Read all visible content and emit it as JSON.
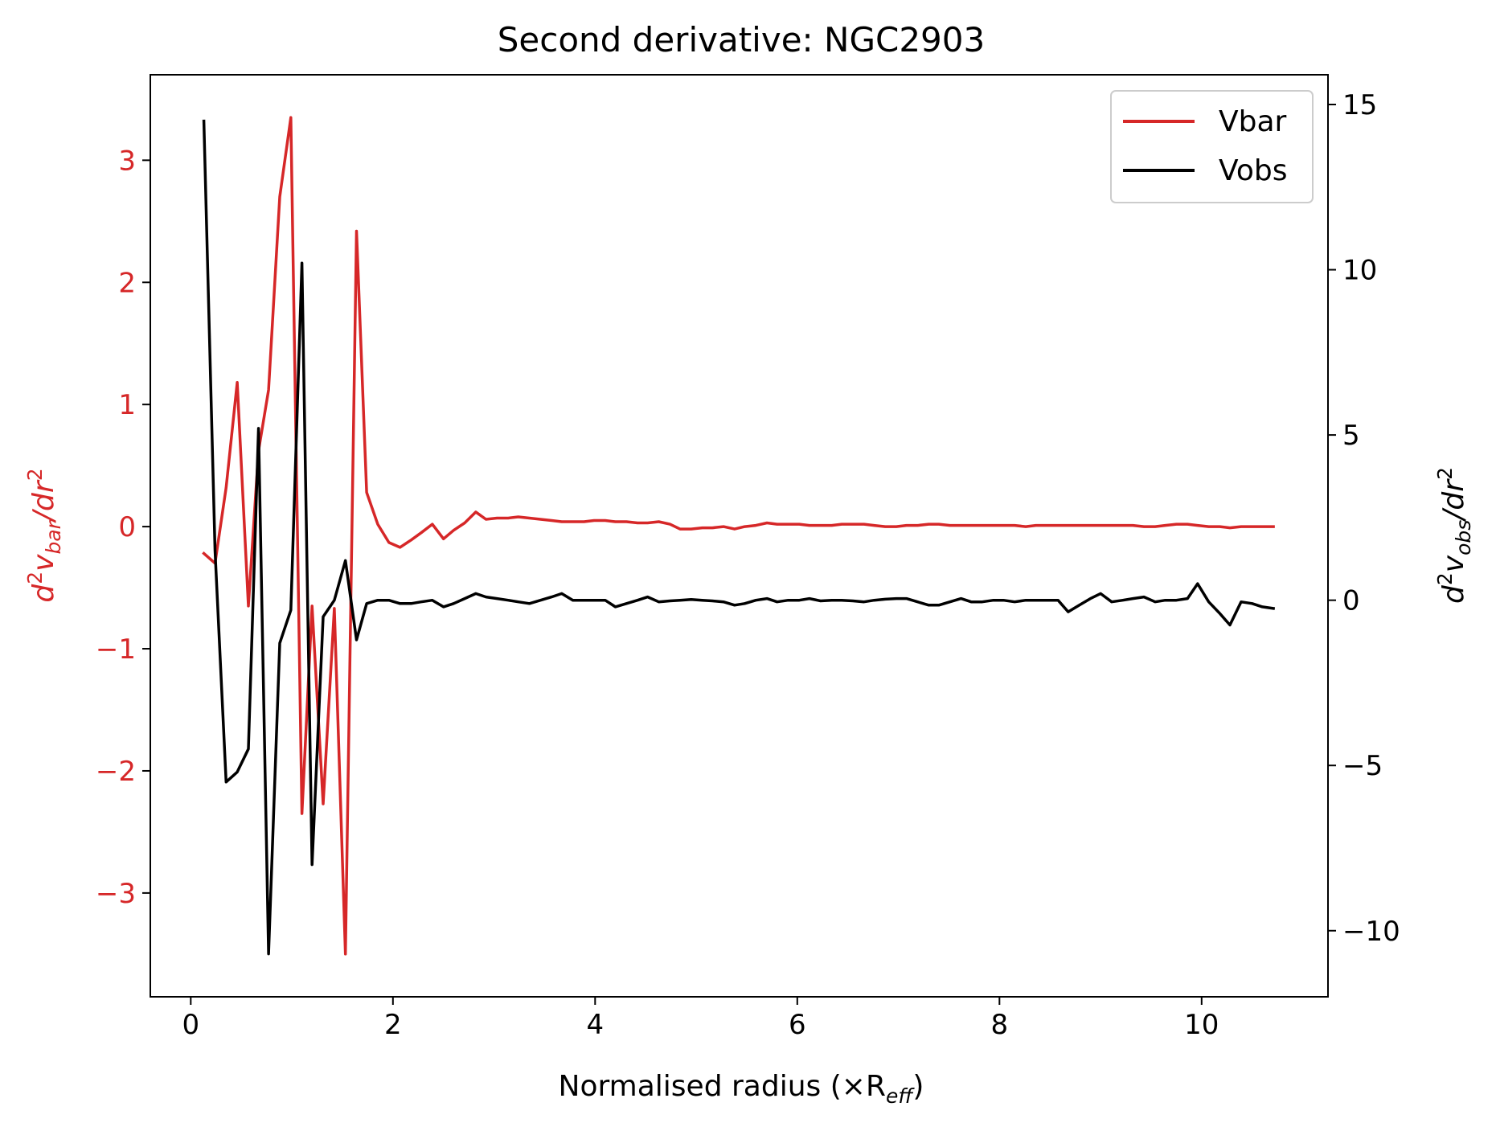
{
  "colors": {
    "vbar": "#d62728",
    "vobs": "#000000",
    "axis": "#000000",
    "background": "#ffffff"
  },
  "chart_data": {
    "type": "line",
    "title": "Second derivative: NGC2903",
    "xlabel": "Normalised radius (×R",
    "xlabel_sub": "eff",
    "xlabel_close": ")",
    "ylabel_left": {
      "d": "d",
      "sup1": "2",
      "v": "v",
      "sub": "bar",
      "mid": "/dr",
      "sup2": "2"
    },
    "ylabel_right": {
      "d": "d",
      "sup1": "2",
      "v": "v",
      "sub": "obs",
      "mid": "/dr",
      "sup2": "2"
    },
    "xlim": [
      -0.4,
      11.25
    ],
    "ylim_left": [
      -3.85,
      3.7
    ],
    "ylim_right": [
      -12.0,
      15.9
    ],
    "xticks": [
      0,
      2,
      4,
      6,
      8,
      10
    ],
    "xtick_labels": [
      "0",
      "2",
      "4",
      "6",
      "8",
      "10"
    ],
    "yticks_left": [
      3,
      2,
      1,
      0,
      -1,
      -2,
      -3
    ],
    "ytick_labels_left": [
      "3",
      "2",
      "1",
      "0",
      "−1",
      "−2",
      "−3"
    ],
    "yticks_right": [
      15,
      10,
      5,
      0,
      -5,
      -10
    ],
    "ytick_labels_right": [
      "15",
      "10",
      "5",
      "0",
      "−5",
      "−10"
    ],
    "grid": false,
    "legend_position": "top-right",
    "series": [
      {
        "name": "Vbar",
        "axis": "left",
        "x": [
          0.13,
          0.24,
          0.35,
          0.46,
          0.57,
          0.67,
          0.77,
          0.88,
          0.99,
          1.1,
          1.2,
          1.31,
          1.42,
          1.53,
          1.64,
          1.74,
          1.85,
          1.96,
          2.07,
          2.18,
          2.28,
          2.39,
          2.5,
          2.6,
          2.71,
          2.82,
          2.92,
          3.03,
          3.14,
          3.24,
          3.35,
          3.46,
          3.57,
          3.67,
          3.78,
          3.89,
          3.99,
          4.1,
          4.2,
          4.31,
          4.42,
          4.52,
          4.63,
          4.74,
          4.84,
          4.95,
          5.06,
          5.16,
          5.27,
          5.38,
          5.48,
          5.59,
          5.7,
          5.8,
          5.91,
          6.02,
          6.12,
          6.23,
          6.34,
          6.44,
          6.55,
          6.66,
          6.76,
          6.87,
          6.98,
          7.08,
          7.19,
          7.3,
          7.4,
          7.51,
          7.62,
          7.72,
          7.83,
          7.94,
          8.04,
          8.15,
          8.26,
          8.36,
          8.47,
          8.58,
          8.68,
          8.79,
          8.9,
          9.0,
          9.11,
          9.22,
          9.32,
          9.43,
          9.54,
          9.64,
          9.75,
          9.86,
          9.96,
          10.07,
          10.18,
          10.28,
          10.39,
          10.5,
          10.6,
          10.71
        ],
        "values": [
          -0.22,
          -0.3,
          0.32,
          1.18,
          -0.65,
          0.62,
          1.12,
          2.7,
          3.35,
          -2.35,
          -0.65,
          -2.27,
          -0.67,
          -3.5,
          2.42,
          0.28,
          0.02,
          -0.13,
          -0.17,
          -0.11,
          -0.05,
          0.02,
          -0.1,
          -0.03,
          0.03,
          0.12,
          0.06,
          0.07,
          0.07,
          0.08,
          0.07,
          0.06,
          0.05,
          0.04,
          0.04,
          0.04,
          0.05,
          0.05,
          0.04,
          0.04,
          0.03,
          0.03,
          0.04,
          0.02,
          -0.02,
          -0.02,
          -0.01,
          -0.01,
          0.0,
          -0.02,
          0.0,
          0.01,
          0.03,
          0.02,
          0.02,
          0.02,
          0.01,
          0.01,
          0.01,
          0.02,
          0.02,
          0.02,
          0.01,
          0.0,
          0.0,
          0.01,
          0.01,
          0.02,
          0.02,
          0.01,
          0.01,
          0.01,
          0.01,
          0.01,
          0.01,
          0.01,
          0.0,
          0.01,
          0.01,
          0.01,
          0.01,
          0.01,
          0.01,
          0.01,
          0.01,
          0.01,
          0.01,
          0.0,
          0.0,
          0.01,
          0.02,
          0.02,
          0.01,
          0.0,
          0.0,
          -0.01,
          0.0,
          0.0,
          0.0,
          0.0
        ]
      },
      {
        "name": "Vobs",
        "axis": "right",
        "x": [
          0.13,
          0.24,
          0.35,
          0.46,
          0.57,
          0.67,
          0.77,
          0.88,
          0.99,
          1.1,
          1.2,
          1.31,
          1.42,
          1.53,
          1.64,
          1.74,
          1.85,
          1.96,
          2.07,
          2.18,
          2.28,
          2.39,
          2.5,
          2.6,
          2.71,
          2.82,
          2.92,
          3.03,
          3.14,
          3.24,
          3.35,
          3.46,
          3.57,
          3.67,
          3.78,
          3.89,
          3.99,
          4.1,
          4.2,
          4.31,
          4.42,
          4.52,
          4.63,
          4.74,
          4.84,
          4.95,
          5.06,
          5.16,
          5.27,
          5.38,
          5.48,
          5.59,
          5.7,
          5.8,
          5.91,
          6.02,
          6.12,
          6.23,
          6.34,
          6.44,
          6.55,
          6.66,
          6.76,
          6.87,
          6.98,
          7.08,
          7.19,
          7.3,
          7.4,
          7.51,
          7.62,
          7.72,
          7.83,
          7.94,
          8.04,
          8.15,
          8.26,
          8.36,
          8.47,
          8.58,
          8.68,
          8.79,
          8.9,
          9.0,
          9.11,
          9.22,
          9.32,
          9.43,
          9.54,
          9.64,
          9.75,
          9.86,
          9.96,
          10.07,
          10.18,
          10.28,
          10.39,
          10.5,
          10.6,
          10.71
        ],
        "values": [
          14.5,
          1.5,
          -5.5,
          -5.2,
          -4.5,
          5.2,
          -10.7,
          -1.3,
          -0.3,
          10.2,
          -8.0,
          -0.5,
          0.0,
          1.2,
          -1.2,
          -0.1,
          0.0,
          0.0,
          -0.1,
          -0.1,
          -0.05,
          0.0,
          -0.2,
          -0.1,
          0.05,
          0.2,
          0.1,
          0.05,
          0.0,
          -0.05,
          -0.1,
          0.0,
          0.1,
          0.2,
          0.0,
          0.0,
          0.0,
          0.0,
          -0.2,
          -0.1,
          0.0,
          0.1,
          -0.05,
          -0.02,
          0.0,
          0.02,
          0.0,
          -0.02,
          -0.05,
          -0.15,
          -0.1,
          0.0,
          0.05,
          -0.05,
          0.0,
          0.0,
          0.05,
          -0.02,
          0.0,
          0.0,
          -0.02,
          -0.05,
          0.0,
          0.03,
          0.05,
          0.05,
          -0.05,
          -0.15,
          -0.15,
          -0.05,
          0.05,
          -0.05,
          -0.05,
          0.0,
          0.0,
          -0.05,
          0.0,
          0.0,
          0.0,
          0.0,
          -0.35,
          -0.15,
          0.05,
          0.2,
          -0.05,
          0.0,
          0.05,
          0.1,
          -0.05,
          0.0,
          0.0,
          0.05,
          0.5,
          -0.05,
          -0.4,
          -0.75,
          -0.05,
          -0.1,
          -0.2,
          -0.25
        ]
      }
    ]
  }
}
